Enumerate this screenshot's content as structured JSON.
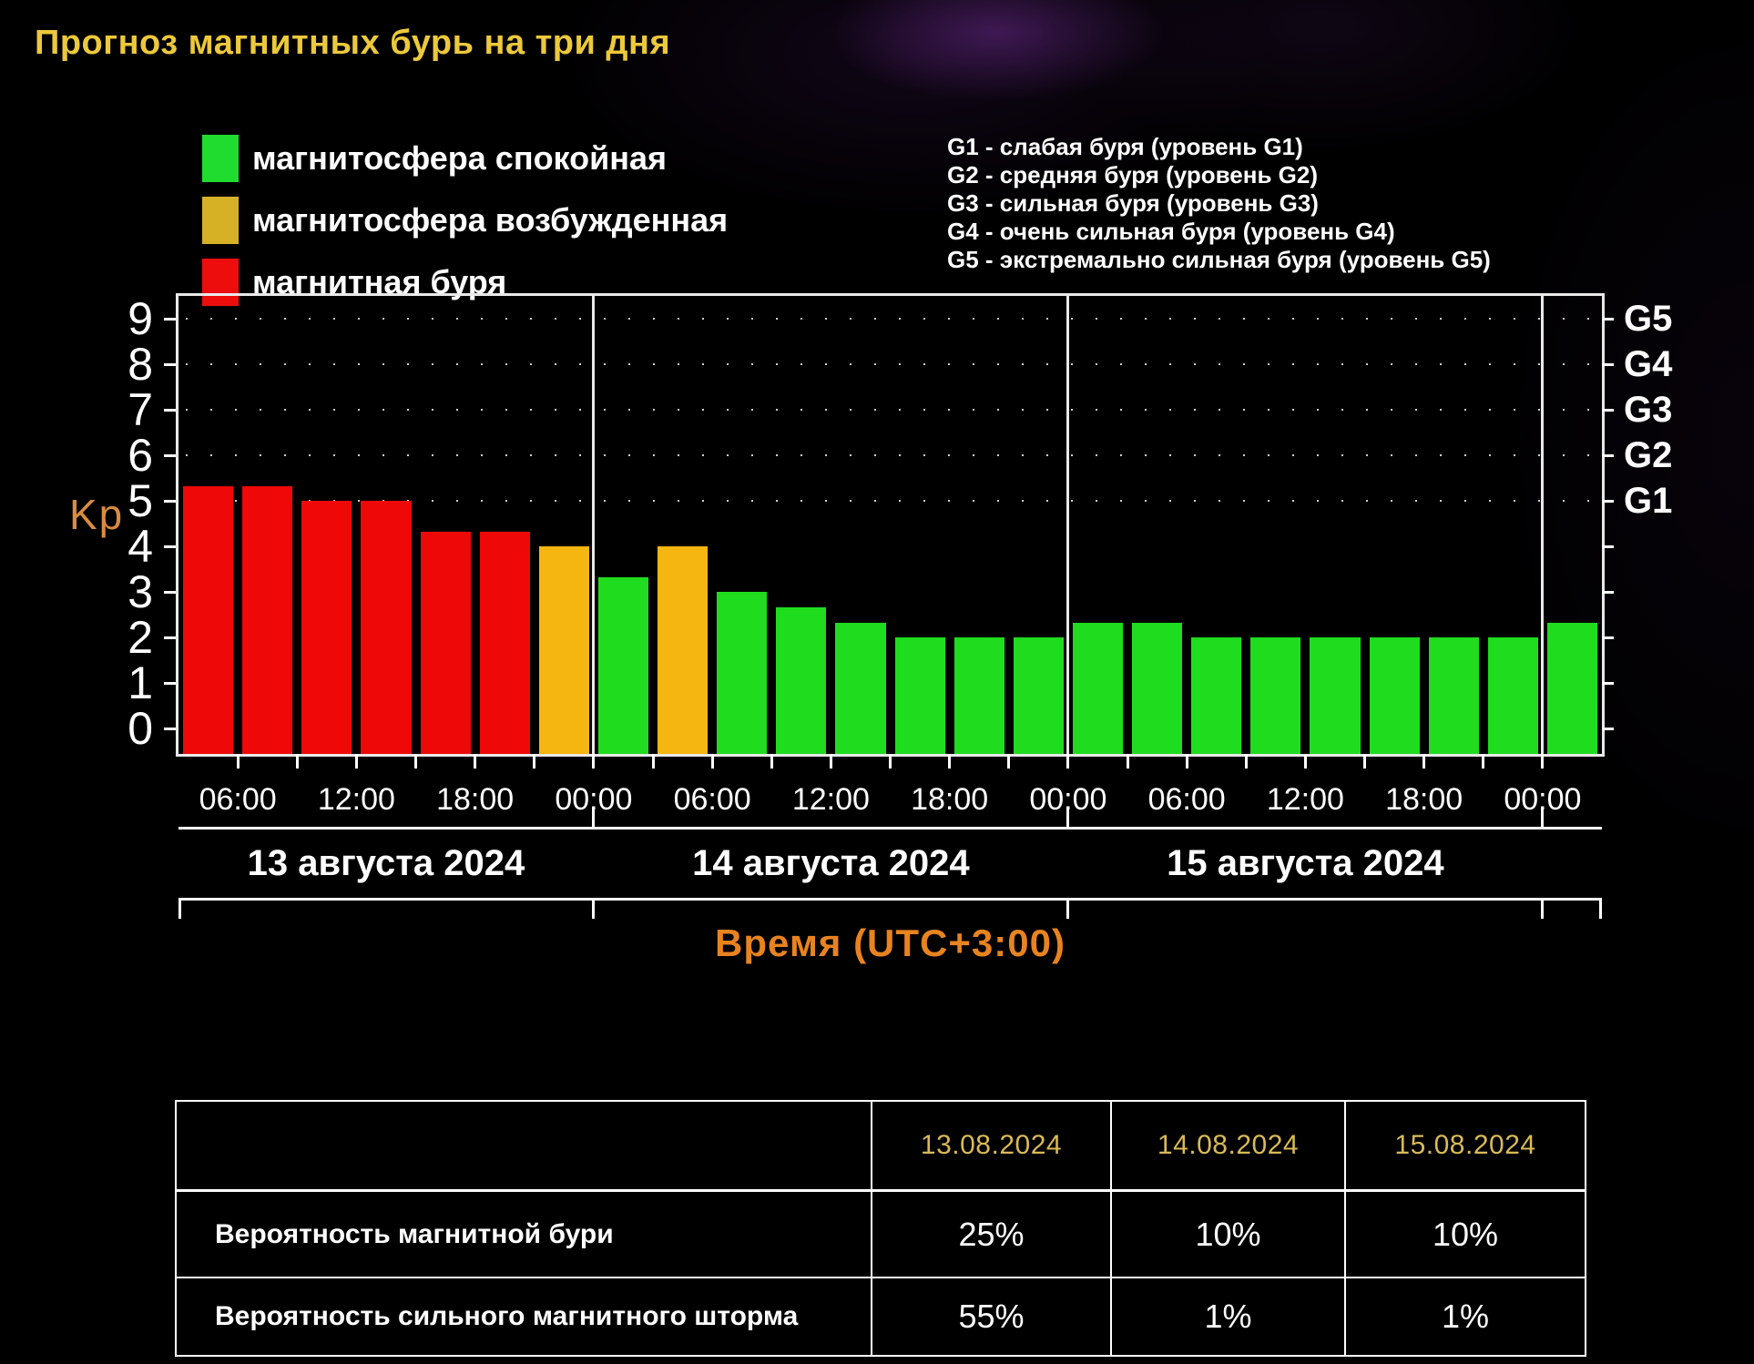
{
  "title": "Прогноз магнитных бурь на три дня",
  "legend": [
    {
      "label": "магнитосфера спокойная",
      "color": "#1fdc2e"
    },
    {
      "label": "магнитосфера возбужденная",
      "color": "#d7b125"
    },
    {
      "label": "магнитная буря",
      "color": "#ee0d0d"
    }
  ],
  "g_levels": [
    "G1 - слабая буря (уровень G1)",
    "G2 - средняя буря (уровень G2)",
    "G3 - сильная буря (уровень G3)",
    "G4 - очень сильная буря (уровень G4)",
    "G5 - экстремально сильная буря (уровень G5)"
  ],
  "chart_data": {
    "type": "bar",
    "ylabel": "Kp",
    "xlabel": "Время (UTC+3:00)",
    "ylim": [
      0,
      9
    ],
    "yticks": [
      0,
      1,
      2,
      3,
      4,
      5,
      6,
      7,
      8,
      9
    ],
    "grid": "dotted horizontal lines at Kp 5-9",
    "grid_dotted_at_kp": [
      5,
      6,
      7,
      8,
      9
    ],
    "right_axis": [
      {
        "label": "G1",
        "kp": 5
      },
      {
        "label": "G2",
        "kp": 6
      },
      {
        "label": "G3",
        "kp": 7
      },
      {
        "label": "G4",
        "kp": 8
      },
      {
        "label": "G5",
        "kp": 9
      }
    ],
    "hours_per_bar": 3,
    "legend_position": "top-left",
    "colors": {
      "quiet": "#1fdc1f",
      "unsettled": "#f6b611",
      "storm": "#ee0808"
    },
    "days": [
      {
        "date": "13 августа 2024",
        "bars": [
          {
            "kp": 5.33,
            "level": "storm"
          },
          {
            "kp": 5.33,
            "level": "storm"
          },
          {
            "kp": 5.0,
            "level": "storm"
          },
          {
            "kp": 5.0,
            "level": "storm"
          },
          {
            "kp": 4.33,
            "level": "storm"
          },
          {
            "kp": 4.33,
            "level": "storm"
          },
          {
            "kp": 4.0,
            "level": "unsettled"
          }
        ]
      },
      {
        "date": "14 августа 2024",
        "bars": [
          {
            "kp": 3.33,
            "level": "quiet"
          },
          {
            "kp": 4.0,
            "level": "unsettled"
          },
          {
            "kp": 3.0,
            "level": "quiet"
          },
          {
            "kp": 2.67,
            "level": "quiet"
          },
          {
            "kp": 2.33,
            "level": "quiet"
          },
          {
            "kp": 2.0,
            "level": "quiet"
          },
          {
            "kp": 2.0,
            "level": "quiet"
          },
          {
            "kp": 2.0,
            "level": "quiet"
          }
        ]
      },
      {
        "date": "15 августа 2024",
        "bars": [
          {
            "kp": 2.33,
            "level": "quiet"
          },
          {
            "kp": 2.33,
            "level": "quiet"
          },
          {
            "kp": 2.0,
            "level": "quiet"
          },
          {
            "kp": 2.0,
            "level": "quiet"
          },
          {
            "kp": 2.0,
            "level": "quiet"
          },
          {
            "kp": 2.0,
            "level": "quiet"
          },
          {
            "kp": 2.0,
            "level": "quiet"
          },
          {
            "kp": 2.0,
            "level": "quiet"
          }
        ]
      }
    ],
    "trailing_bars": [
      {
        "kp": 2.33,
        "level": "quiet"
      }
    ],
    "x_tick_labels": [
      "06:00",
      "12:00",
      "18:00",
      "00:00",
      "06:00",
      "12:00",
      "18:00",
      "00:00",
      "06:00",
      "12:00",
      "18:00",
      "00:00"
    ]
  },
  "table": {
    "columns": [
      "13.08.2024",
      "14.08.2024",
      "15.08.2024"
    ],
    "rows": [
      {
        "label": "Вероятность магнитной бури",
        "values": [
          "25%",
          "10%",
          "10%"
        ]
      },
      {
        "label": "Вероятность сильного магнитного шторма",
        "values": [
          "55%",
          "1%",
          "1%"
        ]
      }
    ]
  }
}
